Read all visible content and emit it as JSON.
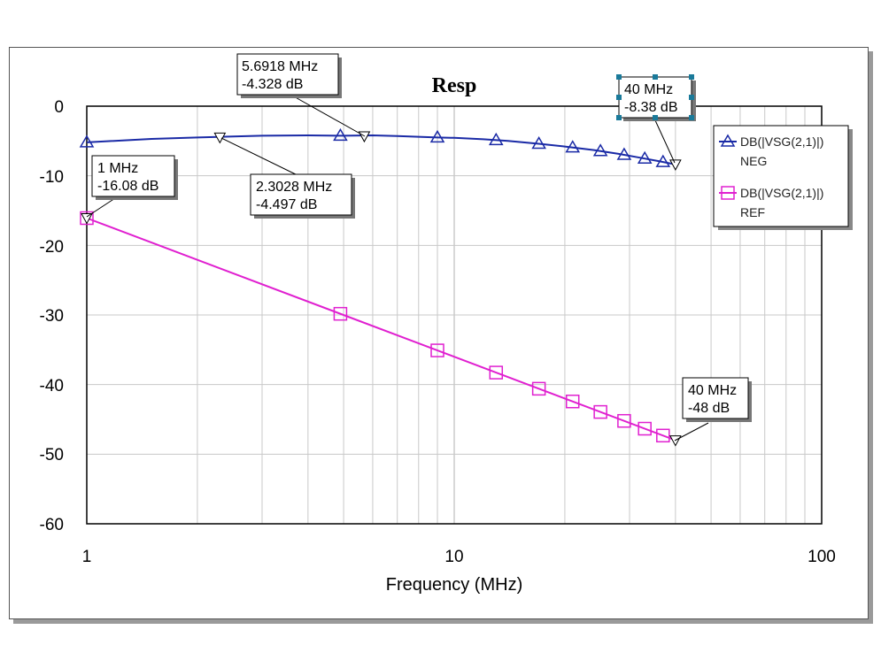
{
  "chart_data": {
    "type": "line",
    "title": "Resp",
    "xlabel": "Frequency (MHz)",
    "ylabel": "",
    "xscale": "log",
    "xlim": [
      1,
      100
    ],
    "ylim": [
      -60,
      0
    ],
    "x_ticks": [
      "1",
      "10",
      "100"
    ],
    "y_ticks": [
      "0",
      "-10",
      "-20",
      "-30",
      "-40",
      "-50",
      "-60"
    ],
    "grid": true,
    "legend_position": "right",
    "series": [
      {
        "name": "DB(|VSG(2,1)|)",
        "sub": "NEG",
        "color": "#1a2aa6",
        "marker": "triangle",
        "x": [
          1,
          1.5,
          2,
          3,
          4,
          5,
          6,
          7,
          8,
          9,
          10,
          12,
          14,
          17,
          20,
          24,
          28,
          32,
          36,
          40
        ],
        "y": [
          -5.2,
          -4.7,
          -4.5,
          -4.25,
          -4.2,
          -4.25,
          -4.2,
          -4.3,
          -4.4,
          -4.5,
          -4.55,
          -4.75,
          -5.0,
          -5.4,
          -5.8,
          -6.3,
          -6.85,
          -7.4,
          -7.9,
          -8.38
        ],
        "marker_x": [
          1,
          4.9,
          9,
          13,
          17,
          21,
          25,
          29,
          33,
          37
        ]
      },
      {
        "name": "DB(|VSG(2,1)|)",
        "sub": "REF",
        "color": "#e020d0",
        "marker": "square",
        "x": [
          1,
          40
        ],
        "y": [
          -16.08,
          -48
        ],
        "marker_x": [
          1,
          4.9,
          9,
          13,
          17,
          21,
          25,
          29,
          33,
          37
        ]
      }
    ],
    "markers": [
      {
        "line1": "5.6918 MHz",
        "line2": "-4.328 dB",
        "x": 5.6918,
        "y": -4.328
      },
      {
        "line1": "2.3028 MHz",
        "line2": "-4.497 dB",
        "x": 2.3028,
        "y": -4.497
      },
      {
        "line1": "1 MHz",
        "line2": "-16.08 dB",
        "x": 1,
        "y": -16.08
      },
      {
        "line1": "40 MHz",
        "line2": "-8.38 dB",
        "x": 40,
        "y": -8.38
      },
      {
        "line1": "40 MHz",
        "line2": "-48 dB",
        "x": 40,
        "y": -48
      }
    ]
  }
}
